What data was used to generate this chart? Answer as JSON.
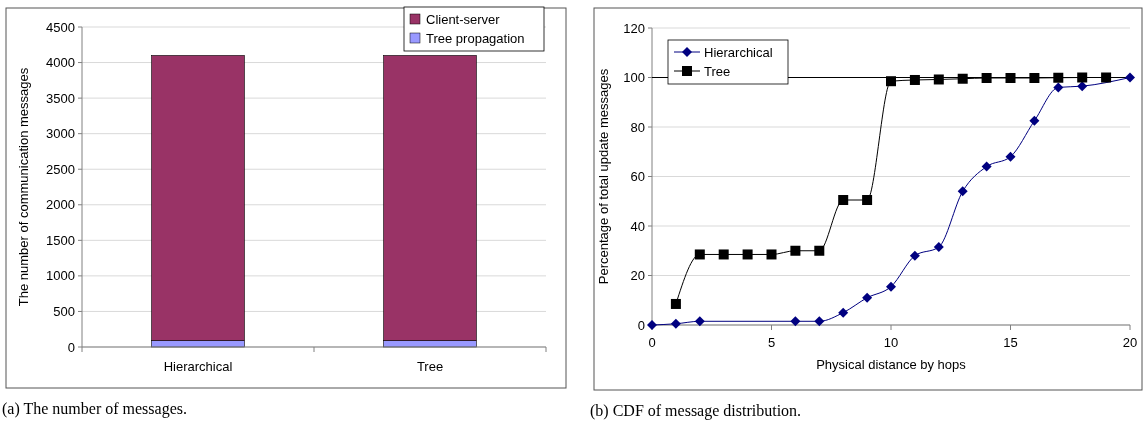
{
  "chart_data": [
    {
      "type": "bar",
      "stacked": true,
      "categories": [
        "Hierarchical",
        "Tree"
      ],
      "ylabel": "The number of communication messages",
      "ylim": [
        0,
        4500
      ],
      "yticks": [
        0,
        500,
        1000,
        1500,
        2000,
        2500,
        3000,
        3500,
        4000,
        4500
      ],
      "grid": "y",
      "legend": "top right",
      "annotations": [
        "(a) The number of messages."
      ],
      "series": [
        {
          "name": "Tree propagation",
          "color": "#9999ff",
          "values": [
            90,
            90
          ]
        },
        {
          "name": "Client-server",
          "color": "#993366",
          "values": [
            4010,
            4010
          ]
        }
      ]
    },
    {
      "type": "line",
      "xlabel": "Physical distance by hops",
      "ylabel": "Percentage of total update messages",
      "xlim": [
        0,
        20
      ],
      "xticks": [
        0,
        5,
        10,
        15,
        20
      ],
      "ylim": [
        0,
        120
      ],
      "yticks": [
        0,
        20,
        40,
        60,
        80,
        100,
        120
      ],
      "grid": "y",
      "legend": "top left",
      "annotations": [
        "(b) CDF of message distribution."
      ],
      "ref_lines": [
        {
          "axis": "y",
          "value": 100,
          "color": "#000000"
        }
      ],
      "series": [
        {
          "name": "Hierarchical",
          "color": "#000080",
          "marker": "diamond",
          "x": [
            0,
            1,
            2,
            6,
            7,
            8,
            9,
            10,
            11,
            12,
            13,
            14,
            15,
            16,
            17,
            18,
            20
          ],
          "values": [
            0,
            0.5,
            1.5,
            1.5,
            1.5,
            5,
            11,
            15.5,
            28,
            31.5,
            54,
            64,
            68,
            82.5,
            96,
            96.5,
            100
          ]
        },
        {
          "name": "Tree",
          "color": "#000000",
          "marker": "square",
          "x": [
            1,
            2,
            3,
            4,
            5,
            6,
            7,
            8,
            9,
            10,
            11,
            12,
            13,
            14,
            15,
            16,
            17,
            18,
            19
          ],
          "values": [
            8.5,
            28.5,
            28.5,
            28.5,
            28.5,
            30,
            30,
            50.5,
            50.5,
            98.5,
            99,
            99.2,
            99.5,
            99.8,
            99.8,
            99.8,
            99.9,
            100,
            100
          ]
        }
      ]
    }
  ]
}
